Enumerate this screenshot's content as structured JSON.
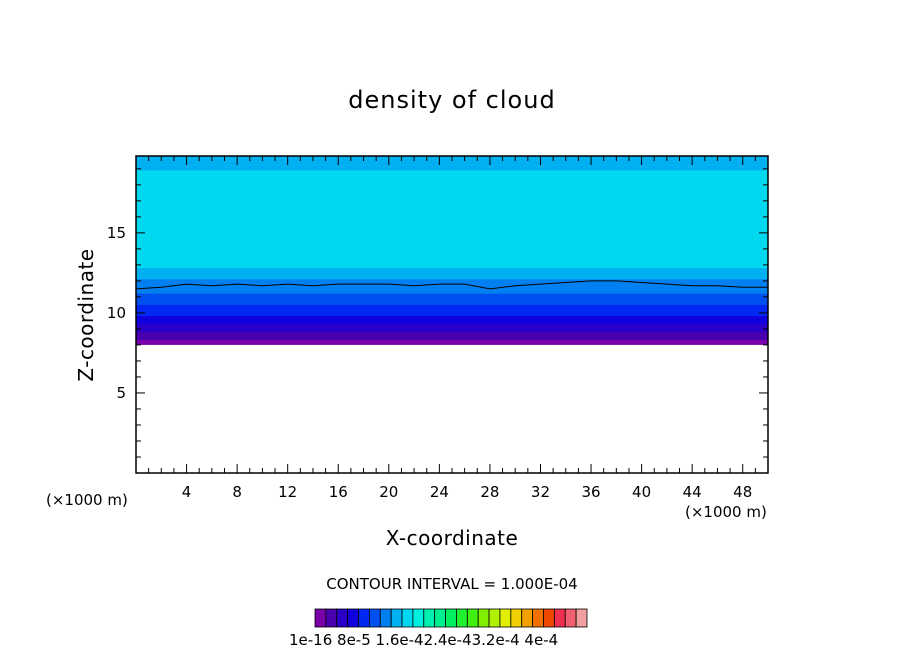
{
  "chart_data": {
    "type": "heatmap",
    "title": "density of cloud",
    "xlabel": "X-coordinate",
    "ylabel": "Z-coordinate",
    "x_unit_left": "(×1000 m)",
    "x_unit_right": "(×1000 m)",
    "xlim": [
      0,
      50
    ],
    "ylim": [
      0,
      19.8
    ],
    "x_ticks": [
      4,
      8,
      12,
      16,
      20,
      24,
      28,
      32,
      36,
      40,
      44,
      48
    ],
    "y_ticks": [
      5,
      10,
      15
    ],
    "contour_interval_label": "CONTOUR INTERVAL = 1.000E-04",
    "colorbar_labels": "1e-16 8e-5 1.6e-42.4e-43.2e-4 4e-4",
    "colorbar_colors": [
      "#7a00a8",
      "#4b00b0",
      "#2a00c8",
      "#1000e0",
      "#0028f0",
      "#0050f0",
      "#0080f0",
      "#00b0f0",
      "#00d8f0",
      "#00f0e0",
      "#00f0b0",
      "#00f090",
      "#00f060",
      "#20f030",
      "#40f010",
      "#80f000",
      "#b0f000",
      "#e0f000",
      "#f0d000",
      "#f0a000",
      "#f07000",
      "#f04800",
      "#f03050",
      "#f06070",
      "#f0a0a0"
    ],
    "bands": [
      {
        "x": [
          0,
          50
        ],
        "lower": [
          8.0,
          8.0
        ],
        "upper": [
          8.4,
          8.4
        ],
        "color": "#7a00a8"
      },
      {
        "x": [
          0,
          50
        ],
        "lower": [
          8.3,
          8.3
        ],
        "upper": [
          8.9,
          8.9
        ],
        "color": "#4b00b0"
      },
      {
        "x": [
          0,
          50
        ],
        "lower": [
          8.8,
          8.8
        ],
        "upper": [
          9.4,
          9.4
        ],
        "color": "#2a00c8"
      },
      {
        "x": [
          0,
          50
        ],
        "lower": [
          9.3,
          9.3
        ],
        "upper": [
          9.9,
          9.9
        ],
        "color": "#1000e0"
      },
      {
        "x": [
          0,
          50
        ],
        "lower": [
          9.8,
          9.8
        ],
        "upper": [
          10.6,
          10.6
        ],
        "color": "#0028f0"
      },
      {
        "x": [
          0,
          50
        ],
        "lower": [
          10.5,
          10.5
        ],
        "upper": [
          11.3,
          11.3
        ],
        "color": "#0050f0"
      },
      {
        "x": [
          0,
          50
        ],
        "lower": [
          11.2,
          11.2
        ],
        "upper": [
          12.2,
          12.2
        ],
        "color": "#0080f0"
      },
      {
        "x": [
          0,
          50
        ],
        "lower": [
          12.1,
          12.1
        ],
        "upper": [
          12.9,
          12.9
        ],
        "color": "#00b0f0"
      },
      {
        "x": [
          0,
          50
        ],
        "lower": [
          12.8,
          12.8
        ],
        "upper": [
          19.0,
          19.0
        ],
        "color": "#00d8f0"
      },
      {
        "x": [
          0,
          50
        ],
        "lower": [
          18.9,
          18.9
        ],
        "upper": [
          19.8,
          19.8
        ],
        "color": "#00b0f0"
      }
    ],
    "contour_line": {
      "x": [
        0,
        2,
        4,
        6,
        8,
        10,
        12,
        14,
        16,
        18,
        20,
        22,
        24,
        26,
        28,
        30,
        32,
        34,
        36,
        38,
        40,
        42,
        44,
        46,
        48,
        50
      ],
      "y": [
        11.5,
        11.6,
        11.8,
        11.7,
        11.8,
        11.7,
        11.8,
        11.7,
        11.8,
        11.8,
        11.8,
        11.7,
        11.8,
        11.8,
        11.5,
        11.7,
        11.8,
        11.9,
        12.0,
        12.0,
        11.9,
        11.8,
        11.7,
        11.7,
        11.6,
        11.6
      ]
    },
    "grid": false,
    "legend": "bottom-center"
  }
}
